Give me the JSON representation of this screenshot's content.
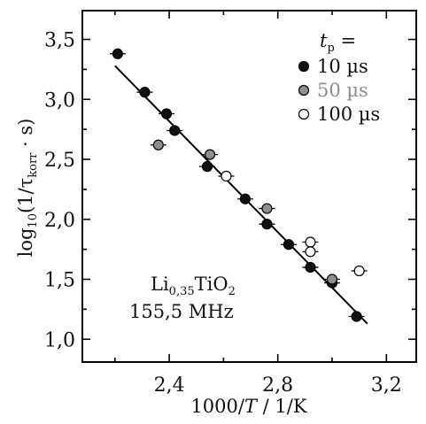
{
  "chart_data": {
    "type": "scatter",
    "xlabel_parts": [
      "1000/",
      "T",
      " / 1/K"
    ],
    "ylabel_parts": [
      "log",
      "10",
      "(1/τ",
      "korr",
      " · s)"
    ],
    "xlim": [
      2.08,
      3.31
    ],
    "ylim": [
      0.81,
      3.74
    ],
    "x_ticks": [
      2.4,
      2.8,
      3.2
    ],
    "x_tick_labels": [
      "2,4",
      "2,8",
      "3,2"
    ],
    "y_ticks": [
      1.0,
      1.5,
      2.0,
      2.5,
      3.0,
      3.5
    ],
    "y_tick_labels": [
      "1,0",
      "1,5",
      "2,0",
      "2,5",
      "3,0",
      "3,5"
    ],
    "legend": {
      "title_parts": [
        "t",
        "p",
        " ="
      ],
      "placement": "top-right"
    },
    "series": [
      {
        "name": "10 µs",
        "color": "#111111",
        "label_color": "#111111",
        "points": [
          {
            "x": 2.21,
            "y": 3.38
          },
          {
            "x": 2.31,
            "y": 3.06
          },
          {
            "x": 2.39,
            "y": 2.88
          },
          {
            "x": 2.42,
            "y": 2.74
          },
          {
            "x": 2.54,
            "y": 2.44
          },
          {
            "x": 2.68,
            "y": 2.17
          },
          {
            "x": 2.76,
            "y": 1.96
          },
          {
            "x": 2.84,
            "y": 1.79
          },
          {
            "x": 2.92,
            "y": 1.6
          },
          {
            "x": 3.0,
            "y": 1.47
          },
          {
            "x": 3.09,
            "y": 1.19
          }
        ]
      },
      {
        "name": "50 µs",
        "color": "#8e8e8e",
        "label_color": "#8e8e8e",
        "points": [
          {
            "x": 2.36,
            "y": 2.62
          },
          {
            "x": 2.55,
            "y": 2.54
          },
          {
            "x": 2.76,
            "y": 2.09
          },
          {
            "x": 3.0,
            "y": 1.5
          }
        ]
      },
      {
        "name": "100 µs",
        "color": "#ffffff",
        "label_color": "#111111",
        "points": [
          {
            "x": 2.61,
            "y": 2.36
          },
          {
            "x": 2.92,
            "y": 1.81
          },
          {
            "x": 2.92,
            "y": 1.73
          },
          {
            "x": 3.1,
            "y": 1.57
          }
        ]
      }
    ],
    "fit_line": {
      "x": [
        2.2,
        3.13
      ],
      "y": [
        3.28,
        1.13
      ]
    },
    "annotation": {
      "line1_parts": [
        "Li",
        "0,35",
        "TiO",
        "2"
      ],
      "line2": "155,5 MHz"
    }
  }
}
